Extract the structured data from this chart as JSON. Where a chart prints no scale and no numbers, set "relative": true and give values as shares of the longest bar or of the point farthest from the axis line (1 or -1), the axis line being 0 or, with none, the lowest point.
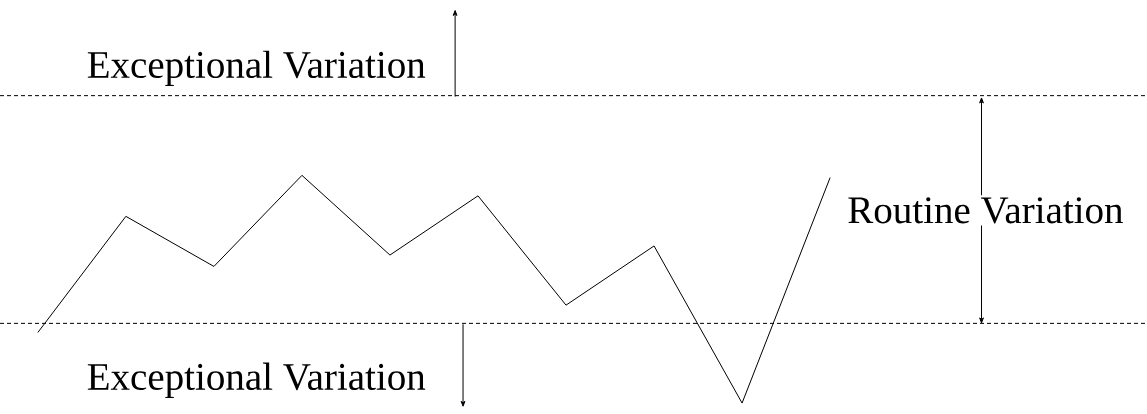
{
  "chart_data": {
    "type": "line",
    "relative": true,
    "categories": [
      null,
      null,
      null,
      null,
      null,
      null,
      null,
      null,
      null,
      null
    ],
    "series": [
      {
        "color": "#000000",
        "values": [
          0.31,
          0.82,
          0.6,
          1.0,
          0.65,
          0.91,
          0.43,
          0.69,
          0.0,
          0.99
        ]
      }
    ],
    "ref_lines": [
      {
        "axis": "y",
        "value": 1.35,
        "color": "#000000",
        "line_style": "dashed"
      },
      {
        "axis": "y",
        "value": 0.35,
        "color": "#000000",
        "line_style": "dashed"
      }
    ],
    "annotations": [
      "Exceptional Variation",
      "Routine Variation",
      "Exceptional Variation"
    ],
    "marker": "none",
    "line_style": "solid"
  }
}
